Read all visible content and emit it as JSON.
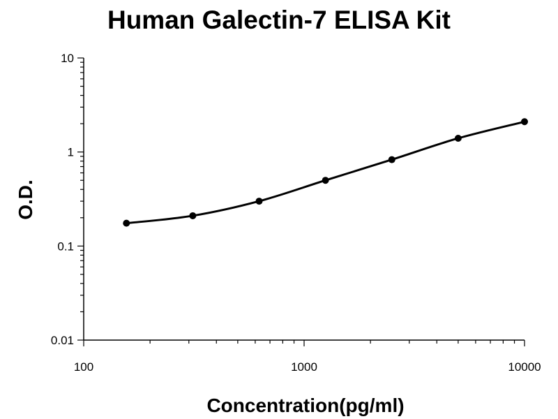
{
  "chart_data": {
    "type": "scatter",
    "title": "Human Galectin-7  ELISA Kit",
    "xlabel": "Concentration(pg/ml)",
    "ylabel": "O.D.",
    "x_scale": "log",
    "y_scale": "log",
    "xlim": [
      100,
      10000
    ],
    "ylim": [
      0.01,
      10
    ],
    "x_tick_labels": [
      "100",
      "1000",
      "10000"
    ],
    "y_tick_labels": [
      "10",
      "1",
      "0.1",
      "0.01"
    ],
    "grid": false,
    "legend": "none",
    "series": [
      {
        "x": [
          156.25,
          312.5,
          625,
          1250,
          2500,
          5000,
          10000
        ],
        "y": [
          0.175,
          0.21,
          0.3,
          0.5,
          0.83,
          1.4,
          2.1
        ],
        "marker": "circle",
        "line": "smooth",
        "color": "#000000"
      }
    ]
  }
}
